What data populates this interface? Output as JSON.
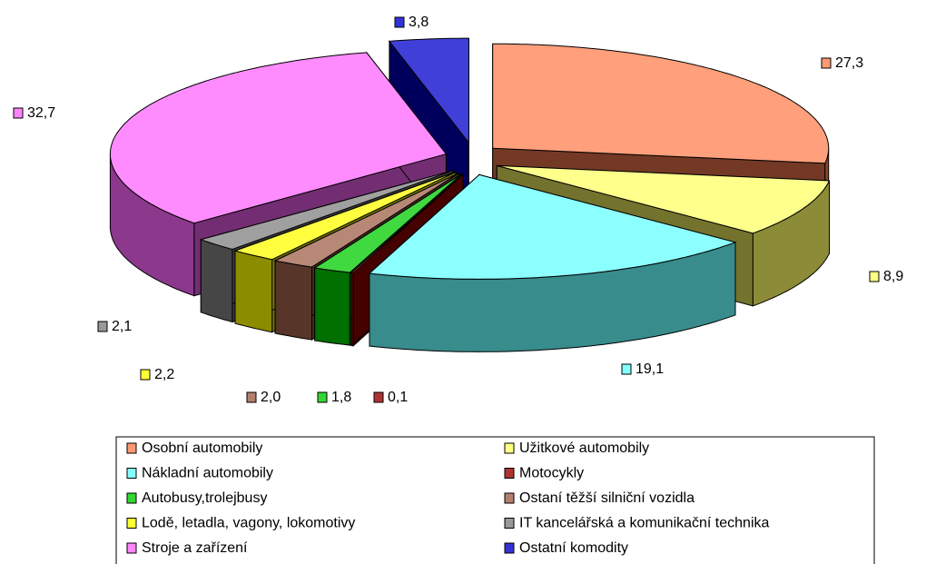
{
  "chart_data": {
    "type": "pie",
    "categories": [
      "Osobní automobily",
      "Užitkové automobily",
      "Nákladní automobily",
      "Motocykly",
      "Autobusy,trolejbusy",
      "Ostaní těžší silniční vozidla",
      "Lodě, letadla, vagony, lokomotivy",
      "IT kancelářská a komunikační technika",
      "Stroje a zařízení",
      "Ostatní komodity"
    ],
    "values": [
      27.3,
      8.9,
      19.1,
      0.1,
      1.8,
      2.0,
      2.2,
      2.1,
      32.7,
      3.8
    ],
    "value_labels": [
      "27,3",
      "8,9",
      "19,1",
      "0,1",
      "1,8",
      "2,0",
      "2,2",
      "2,1",
      "32,7",
      "3,8"
    ],
    "colors": [
      "#ff7f50",
      "#ffff66",
      "#66ffff",
      "#990000",
      "#00cc00",
      "#a0604a",
      "#ffff00",
      "#808080",
      "#ff66ff",
      "#0000cc"
    ],
    "legend": "bottom"
  }
}
